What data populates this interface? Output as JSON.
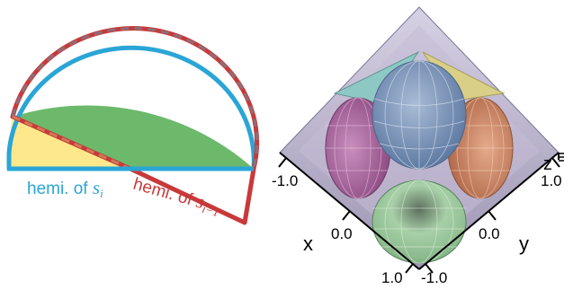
{
  "left_diagram": {
    "label_si_prefix": "hemi. of ",
    "label_si_var": "s",
    "label_si_sub": "i",
    "label_si1_prefix": "hemi. of ",
    "label_si1_var": "s",
    "label_si1_sub": "i−1",
    "colors": {
      "green": "#6cb96b",
      "yellow": "#fde98b",
      "blue": "#2aa5d6",
      "red": "#c8393a",
      "dash": "#7b6f86"
    }
  },
  "right_diagram": {
    "axis_x_label": "x",
    "axis_y_label": "y",
    "axis_z_label": "z",
    "x_ticks": [
      "-1.0",
      "0.0",
      "1.0"
    ],
    "y_ticks": [
      "-1.0",
      "0.0",
      "1.0"
    ],
    "colors": {
      "box": "#b0a8c4",
      "blue_cone": "#7b93b6",
      "green_cone": "#9fc6a0",
      "pink_cone": "#b06da3",
      "orange_cone": "#d28b6a",
      "yellow_cone": "#d9cf86",
      "teal_cone": "#8ec8c4"
    }
  }
}
